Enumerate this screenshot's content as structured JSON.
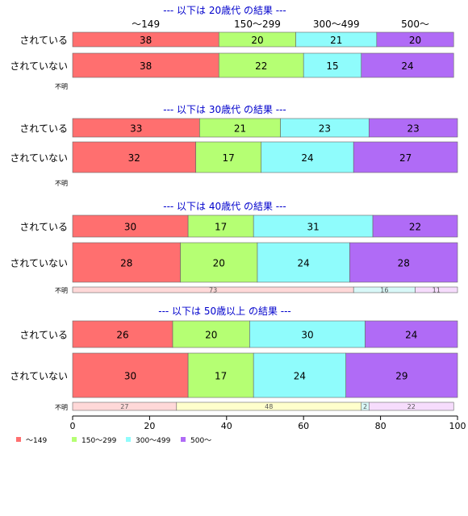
{
  "colors": {
    "series": [
      "#ff6f6f",
      "#b5ff73",
      "#8ffcfc",
      "#b06bf6"
    ],
    "series_light": [
      "#ffd8d8",
      "#ffffcc",
      "#d8f8f8",
      "#f6dcfc"
    ],
    "title": "#0000cc",
    "axis": "#000000",
    "border": "#666666"
  },
  "legend": {
    "items": [
      "〜149",
      "150〜299",
      "300〜499",
      "500〜"
    ]
  },
  "chart_data": {
    "type": "bar",
    "orientation": "horizontal",
    "stacked": "percent",
    "xlim": [
      0,
      100
    ],
    "x_ticks": [
      0,
      20,
      40,
      60,
      80,
      100
    ],
    "grid": false,
    "legend_position": "bottom-left",
    "series_names": [
      "〜149",
      "150〜299",
      "300〜499",
      "500〜"
    ],
    "top_category_labels": [
      "〜149",
      "150〜299",
      "300〜499",
      "500〜"
    ],
    "panels": [
      {
        "title": "--- 以下は 20歳代 の結果 ---",
        "rows": [
          {
            "label": "されている",
            "values": [
              38,
              20,
              21,
              20
            ]
          },
          {
            "label": "されていない",
            "values": [
              38,
              22,
              15,
              24
            ]
          }
        ],
        "unknown": {
          "label": "不明",
          "values": []
        }
      },
      {
        "title": "--- 以下は 30歳代 の結果 ---",
        "rows": [
          {
            "label": "されている",
            "values": [
              33,
              21,
              23,
              23
            ]
          },
          {
            "label": "されていない",
            "values": [
              32,
              17,
              24,
              27
            ]
          }
        ],
        "unknown": {
          "label": "不明",
          "values": []
        }
      },
      {
        "title": "--- 以下は 40歳代 の結果 ---",
        "rows": [
          {
            "label": "されている",
            "values": [
              30,
              17,
              31,
              22
            ]
          },
          {
            "label": "されていない",
            "values": [
              28,
              20,
              24,
              28
            ]
          }
        ],
        "unknown": {
          "label": "不明",
          "values": [
            73,
            0,
            16,
            11
          ],
          "labels": [
            "73",
            "",
            "16",
            "11"
          ]
        }
      },
      {
        "title": "--- 以下は 50歳以上 の結果 ---",
        "rows": [
          {
            "label": "されている",
            "values": [
              26,
              20,
              30,
              24
            ]
          },
          {
            "label": "されていない",
            "values": [
              30,
              17,
              24,
              29
            ]
          }
        ],
        "unknown": {
          "label": "不明",
          "values": [
            27,
            48,
            2,
            22
          ],
          "labels": [
            "27",
            "48",
            "2",
            "22"
          ]
        }
      }
    ]
  }
}
